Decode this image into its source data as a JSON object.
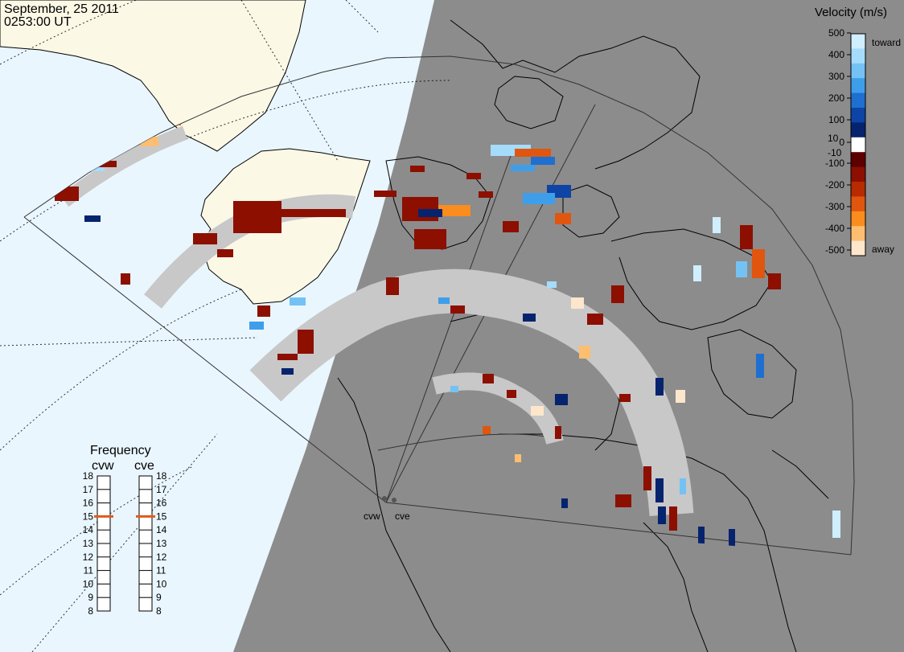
{
  "header": {
    "date": "September, 25 2011",
    "time": "0253:00 UT"
  },
  "colors": {
    "ocean": "#e9f6fe",
    "land_day": "#fbf8e6",
    "night": "#8c8c8c",
    "ground_scatter": "#c8c8c8"
  },
  "velocity_scale": {
    "title": "Velocity (m/s)",
    "ticks": [
      "500",
      "400",
      "300",
      "200",
      "100",
      "10",
      "0",
      "-10",
      "-100",
      "-200",
      "-300",
      "-400",
      "-500"
    ],
    "toward_label": "toward",
    "away_label": "away",
    "bands": [
      {
        "color": "#cfeefe"
      },
      {
        "color": "#a6dcfb"
      },
      {
        "color": "#74c2f4"
      },
      {
        "color": "#3f9ee9"
      },
      {
        "color": "#1f6fd0"
      },
      {
        "color": "#0d44a6"
      },
      {
        "color": "#06236e"
      },
      {
        "color": "#ffffff"
      },
      {
        "color": "#5c0000"
      },
      {
        "color": "#8c0f00"
      },
      {
        "color": "#b82a00"
      },
      {
        "color": "#e0560f"
      },
      {
        "color": "#fb8c1e"
      },
      {
        "color": "#fdbe71"
      },
      {
        "color": "#fde6cb"
      }
    ]
  },
  "frequency_panel": {
    "title": "Frequency",
    "radars": [
      "cvw",
      "cve"
    ],
    "ticks": [
      "18",
      "17",
      "16",
      "15",
      "14",
      "13",
      "12",
      "11",
      "10",
      "9",
      "8"
    ],
    "cvw_mhz": 15,
    "cve_mhz": 15,
    "marker_color": "#e05a1a"
  },
  "radar_labels": [
    "cvw",
    "cve"
  ]
}
